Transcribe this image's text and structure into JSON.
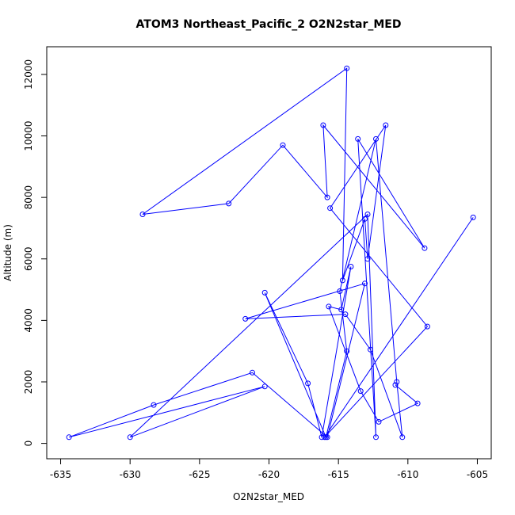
{
  "chart_data": {
    "type": "line",
    "title": "ATOM3 Northeast_Pacific_2 O2N2star_MED",
    "xlabel": "O2N2star_MED",
    "ylabel": "Altitude (m)",
    "xlim": [
      -636,
      -604
    ],
    "ylim": [
      -500,
      12900
    ],
    "xticks": [
      -635,
      -630,
      -625,
      -620,
      -615,
      -610,
      -605
    ],
    "yticks": [
      0,
      2000,
      4000,
      6000,
      8000,
      10000,
      12000
    ],
    "grid": false,
    "marker": "open-circle",
    "colors": {
      "series": "#0000ff"
    },
    "series": [
      {
        "x": [
          -610.9,
          -609.3,
          -612.1,
          -613.4,
          -615.7,
          -614.8,
          -614.1,
          -616.2,
          -617.2,
          -620.3,
          -615.9,
          -614.4,
          -614.9,
          -612.3,
          -610.8,
          -610.4,
          -612.7,
          -614.5,
          -621.7,
          -613.1,
          -615.8,
          -621.2,
          -628.3,
          -634.4,
          -620.3,
          -630.0,
          -612.9,
          -612.3,
          -613.6,
          -608.8,
          -616.1,
          -615.8,
          -619.0,
          -622.9,
          -629.1,
          -614.4,
          -614.7,
          -613.1,
          -612.9,
          -611.6,
          -615.6,
          -608.6,
          -616.0,
          -605.3
        ],
        "y": [
          1900,
          1300,
          700,
          1700,
          4450,
          4350,
          5750,
          200,
          1950,
          4900,
          200,
          3000,
          4950,
          9900,
          2000,
          200,
          3050,
          4200,
          4050,
          5200,
          200,
          2300,
          1250,
          200,
          1850,
          200,
          7450,
          200,
          9900,
          6350,
          10350,
          8000,
          9700,
          7800,
          7450,
          12200,
          5300,
          7300,
          6000,
          10350,
          7650,
          3800,
          200,
          7350
        ]
      }
    ]
  }
}
